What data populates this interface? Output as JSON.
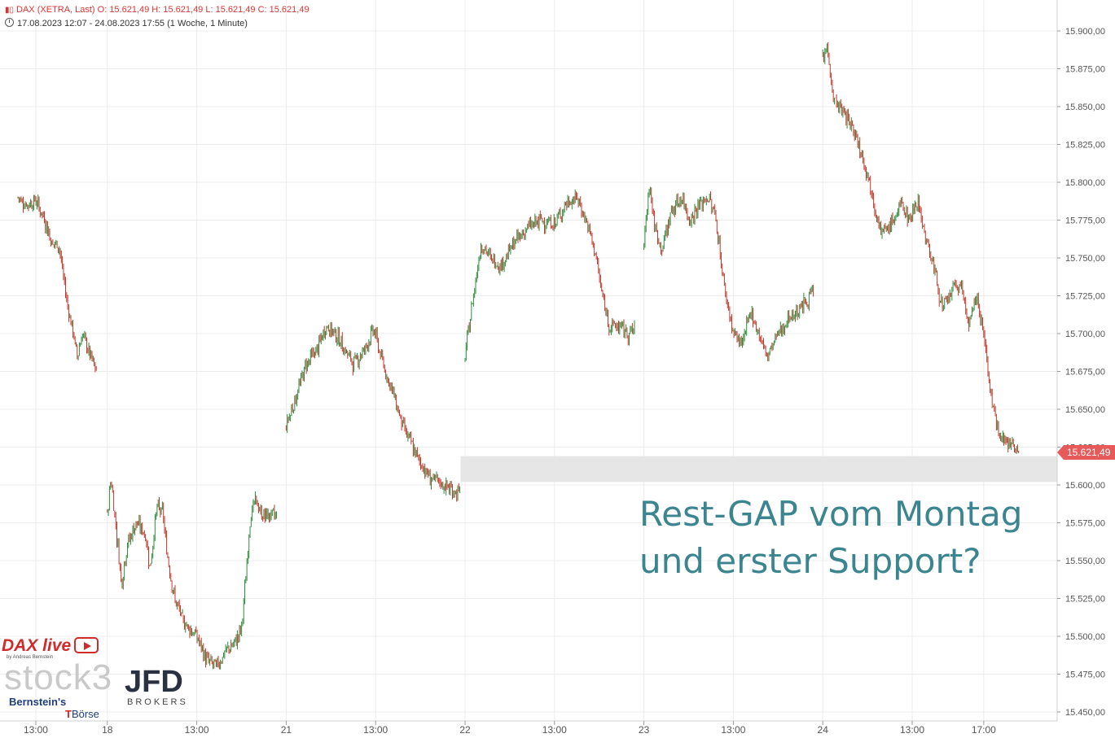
{
  "header": {
    "line1": "DAX (XETRA, Last)  O: 15.621,49  H: 15.621,49  L: 15.621,49  C: 15.621,49",
    "line2": "17.08.2023 12:07 - 24.08.2023 17:55   (1 Woche, 1 Minute)"
  },
  "annotation": {
    "line1": "Rest-GAP vom Montag",
    "line2": "und erster Support?"
  },
  "logos": {
    "dax_live": "DAX live",
    "dax_live_by": "by Andreas Bernstein",
    "stock3": "stock3",
    "jfd": "JFD",
    "jfd_sub": "BROKERS",
    "bernstein": "Bernstein's",
    "boerse": "Börse"
  },
  "colors": {
    "up": "#2e8b3a",
    "down": "#c0392b",
    "last_price": "#e85a5a",
    "gap_zone": "#e6e6e6",
    "annotation": "#3a8590",
    "grid": "#ececec"
  },
  "chart_data": {
    "type": "candlestick",
    "title": "DAX (XETRA, Last)",
    "ylim": [
      15450,
      15900
    ],
    "y_ticks": [
      "15.450,00",
      "15.475,00",
      "15.500,00",
      "15.525,00",
      "15.550,00",
      "15.575,00",
      "15.600,00",
      "15.625,00",
      "15.650,00",
      "15.675,00",
      "15.700,00",
      "15.725,00",
      "15.750,00",
      "15.775,00",
      "15.800,00",
      "15.825,00",
      "15.850,00",
      "15.875,00",
      "15.900,00"
    ],
    "y_tick_values": [
      15450,
      15475,
      15500,
      15525,
      15550,
      15575,
      15600,
      15625,
      15650,
      15675,
      15700,
      15725,
      15750,
      15775,
      15800,
      15825,
      15850,
      15875,
      15900
    ],
    "x_ticks": [
      "13:00",
      "18",
      "13:00",
      "21",
      "13:00",
      "22",
      "13:00",
      "23",
      "13:00",
      "24",
      "13:00",
      "17:00"
    ],
    "x_tick_positions": [
      0.2,
      1,
      2,
      3,
      4,
      5,
      6,
      7,
      8,
      9,
      10,
      10.8
    ],
    "last_price": 15621.49,
    "last_price_label": "15.621,49",
    "gap_zone": {
      "from": 15602,
      "to": 15619,
      "start_x": 4.95
    },
    "sessions": [
      {
        "day": "17",
        "x_start": 0,
        "x_end": 0.88,
        "points": [
          [
            0,
            15790
          ],
          [
            0.1,
            15785
          ],
          [
            0.2,
            15788
          ],
          [
            0.3,
            15775
          ],
          [
            0.38,
            15760
          ],
          [
            0.46,
            15758
          ],
          [
            0.55,
            15720
          ],
          [
            0.62,
            15700
          ],
          [
            0.66,
            15685
          ],
          [
            0.72,
            15700
          ],
          [
            0.78,
            15690
          ],
          [
            0.83,
            15682
          ],
          [
            0.88,
            15674
          ]
        ]
      },
      {
        "day": "18",
        "x_start": 1.0,
        "x_end": 1.85,
        "points": [
          [
            1.0,
            15580
          ],
          [
            1.04,
            15605
          ],
          [
            1.1,
            15570
          ],
          [
            1.16,
            15535
          ],
          [
            1.22,
            15560
          ],
          [
            1.32,
            15575
          ],
          [
            1.42,
            15568
          ],
          [
            1.48,
            15545
          ],
          [
            1.55,
            15585
          ],
          [
            1.62,
            15582
          ],
          [
            1.66,
            15558
          ],
          [
            1.75,
            15525
          ],
          [
            1.85,
            15510
          ]
        ]
      },
      {
        "day": "18b",
        "x_start": 1.85,
        "x_end": 2.9,
        "points": [
          [
            1.85,
            15510
          ],
          [
            2.0,
            15500
          ],
          [
            2.1,
            15485
          ],
          [
            2.22,
            15480
          ],
          [
            2.32,
            15490
          ],
          [
            2.42,
            15495
          ],
          [
            2.5,
            15505
          ],
          [
            2.55,
            15540
          ],
          [
            2.6,
            15580
          ],
          [
            2.66,
            15590
          ],
          [
            2.72,
            15580
          ]
        ]
      },
      {
        "day": "21",
        "x_start": 3.0,
        "x_end": 4.95,
        "points": [
          [
            3.0,
            15640
          ],
          [
            3.12,
            15660
          ],
          [
            3.22,
            15680
          ],
          [
            3.35,
            15690
          ],
          [
            3.45,
            15705
          ],
          [
            3.55,
            15700
          ],
          [
            3.65,
            15690
          ],
          [
            3.75,
            15680
          ],
          [
            3.88,
            15690
          ],
          [
            3.98,
            15703
          ],
          [
            4.08,
            15680
          ],
          [
            4.2,
            15660
          ],
          [
            4.3,
            15640
          ],
          [
            4.45,
            15620
          ],
          [
            4.6,
            15605
          ],
          [
            4.75,
            15600
          ],
          [
            4.9,
            15595
          ]
        ]
      },
      {
        "day": "22",
        "x_start": 5.0,
        "x_end": 6.9,
        "points": [
          [
            5.0,
            15685
          ],
          [
            5.08,
            15720
          ],
          [
            5.18,
            15760
          ],
          [
            5.28,
            15750
          ],
          [
            5.4,
            15745
          ],
          [
            5.55,
            15760
          ],
          [
            5.7,
            15770
          ],
          [
            5.85,
            15775
          ],
          [
            6.0,
            15772
          ],
          [
            6.12,
            15785
          ],
          [
            6.25,
            15790
          ],
          [
            6.35,
            15775
          ],
          [
            6.45,
            15755
          ],
          [
            6.55,
            15720
          ],
          [
            6.62,
            15705
          ],
          [
            6.72,
            15705
          ],
          [
            6.82,
            15700
          ],
          [
            6.9,
            15703
          ]
        ]
      },
      {
        "day": "23",
        "x_start": 7.0,
        "x_end": 8.9,
        "points": [
          [
            7.0,
            15760
          ],
          [
            7.06,
            15800
          ],
          [
            7.12,
            15770
          ],
          [
            7.2,
            15755
          ],
          [
            7.3,
            15780
          ],
          [
            7.42,
            15790
          ],
          [
            7.52,
            15775
          ],
          [
            7.62,
            15785
          ],
          [
            7.72,
            15790
          ],
          [
            7.8,
            15778
          ],
          [
            7.9,
            15730
          ],
          [
            8.0,
            15700
          ],
          [
            8.1,
            15693
          ],
          [
            8.2,
            15715
          ],
          [
            8.28,
            15700
          ],
          [
            8.38,
            15685
          ],
          [
            8.5,
            15700
          ],
          [
            8.62,
            15710
          ],
          [
            8.72,
            15715
          ],
          [
            8.82,
            15722
          ],
          [
            8.9,
            15728
          ]
        ]
      },
      {
        "day": "24",
        "x_start": 9.0,
        "x_end": 11.2,
        "points": [
          [
            9.0,
            15880
          ],
          [
            9.05,
            15890
          ],
          [
            9.12,
            15855
          ],
          [
            9.2,
            15848
          ],
          [
            9.28,
            15842
          ],
          [
            9.38,
            15830
          ],
          [
            9.48,
            15810
          ],
          [
            9.56,
            15790
          ],
          [
            9.66,
            15765
          ],
          [
            9.76,
            15772
          ],
          [
            9.88,
            15785
          ],
          [
            9.98,
            15775
          ],
          [
            10.06,
            15790
          ],
          [
            10.14,
            15765
          ],
          [
            10.24,
            15745
          ],
          [
            10.34,
            15715
          ],
          [
            10.44,
            15728
          ],
          [
            10.54,
            15733
          ],
          [
            10.64,
            15705
          ],
          [
            10.72,
            15725
          ],
          [
            10.8,
            15700
          ],
          [
            10.9,
            15650
          ],
          [
            10.98,
            15635
          ],
          [
            11.06,
            15627
          ],
          [
            11.12,
            15628
          ],
          [
            11.2,
            15622
          ]
        ]
      }
    ]
  }
}
